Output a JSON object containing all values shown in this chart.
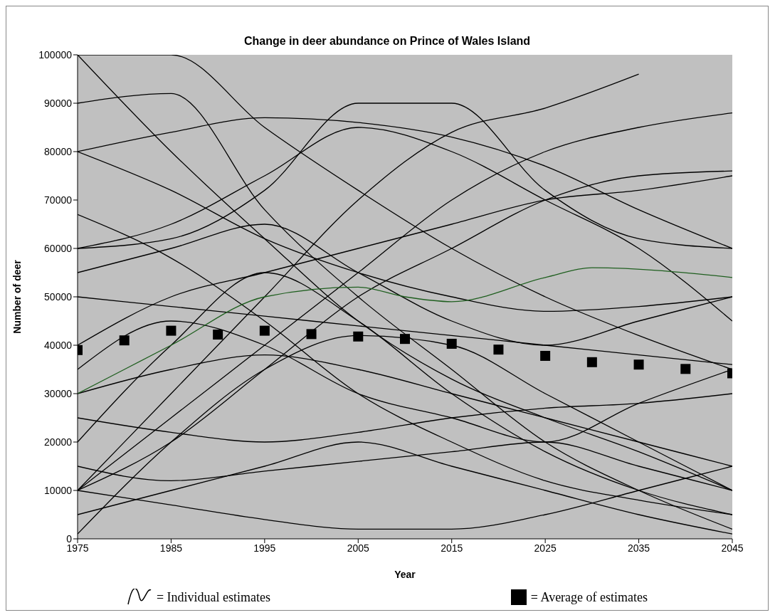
{
  "chart_data": {
    "type": "line",
    "title": "Change in deer abundance on Prince of Wales Island",
    "xlabel": "Year",
    "ylabel": "Number of deer",
    "x": [
      1975,
      1985,
      1995,
      2005,
      2015,
      2025,
      2035,
      2045
    ],
    "xlim": [
      1975,
      2045
    ],
    "xticks": [
      1975,
      1985,
      1995,
      2005,
      2015,
      2025,
      2035,
      2045
    ],
    "ylim": [
      0,
      100000
    ],
    "yticks": [
      0,
      10000,
      20000,
      30000,
      40000,
      50000,
      60000,
      70000,
      80000,
      90000,
      100000
    ],
    "grid": false,
    "legend": "bottom",
    "marker": "none",
    "line_style": "solid",
    "series": [
      {
        "name": "= Individual estimates",
        "color": "#000000",
        "values": [
          100000,
          100000,
          85000,
          72000,
          60000,
          50000,
          42000,
          35000
        ]
      },
      {
        "color": "#000000",
        "values": [
          100000,
          80000,
          62000,
          45000,
          33000,
          25000,
          18000,
          10000
        ]
      },
      {
        "color": "#000000",
        "values": [
          80000,
          84000,
          87000,
          86000,
          83000,
          77000,
          68000,
          60000
        ]
      },
      {
        "color": "#000000",
        "values": [
          80000,
          72000,
          62000,
          55000,
          50000,
          47000,
          48000,
          50000
        ]
      },
      {
        "color": "#000000",
        "values": [
          60000,
          62000,
          72000,
          90000,
          90000,
          72000,
          62000,
          60000
        ]
      },
      {
        "color": "#000000",
        "values": [
          10000,
          30000,
          50000,
          70000,
          84000,
          89000,
          96000,
          null
        ]
      },
      {
        "color": "#000000",
        "values": [
          10000,
          25000,
          40000,
          55000,
          70000,
          80000,
          85000,
          88000
        ]
      },
      {
        "color": "#000000",
        "values": [
          50000,
          48000,
          46000,
          44000,
          42000,
          40000,
          38000,
          36000
        ]
      },
      {
        "color": "#000000",
        "values": [
          30000,
          35000,
          38000,
          35000,
          30000,
          25000,
          20000,
          15000
        ]
      },
      {
        "color": "#000000",
        "values": [
          20000,
          40000,
          55000,
          45000,
          30000,
          18000,
          10000,
          5000
        ]
      },
      {
        "color": "#000000",
        "values": [
          10000,
          20000,
          35000,
          50000,
          60000,
          70000,
          75000,
          76000
        ]
      },
      {
        "color": "#000000",
        "values": [
          1000,
          20000,
          35000,
          42000,
          40000,
          30000,
          20000,
          10000
        ]
      },
      {
        "color": "#000000",
        "values": [
          90000,
          92000,
          68000,
          50000,
          35000,
          20000,
          10000,
          2000
        ]
      },
      {
        "color": "#000000",
        "values": [
          67000,
          58000,
          45000,
          30000,
          20000,
          12000,
          8000,
          5000
        ]
      },
      {
        "color": "#000000",
        "values": [
          10000,
          7000,
          4000,
          2000,
          2000,
          5000,
          10000,
          15000
        ]
      },
      {
        "color": "#000000",
        "values": [
          25000,
          22000,
          20000,
          22000,
          25000,
          27000,
          28000,
          30000
        ]
      },
      {
        "color": "#000000",
        "values": [
          40000,
          50000,
          55000,
          60000,
          65000,
          70000,
          72000,
          75000
        ]
      },
      {
        "color": "#000000",
        "values": [
          5000,
          10000,
          15000,
          20000,
          15000,
          10000,
          5000,
          1000
        ]
      },
      {
        "color": "#000000",
        "values": [
          60000,
          65000,
          75000,
          85000,
          80000,
          70000,
          60000,
          45000
        ]
      },
      {
        "color": "#000000",
        "values": [
          35000,
          45000,
          40000,
          30000,
          25000,
          20000,
          28000,
          35000
        ]
      },
      {
        "color": "#000000",
        "values": [
          15000,
          12000,
          14000,
          16000,
          18000,
          20000,
          15000,
          10000
        ]
      },
      {
        "color": "#000000",
        "values": [
          55000,
          60000,
          65000,
          55000,
          45000,
          40000,
          45000,
          50000
        ]
      },
      {
        "color": "#1f5f1f",
        "x": [
          1975,
          1985,
          1995,
          2005,
          2010,
          2015,
          2025,
          2030,
          2045
        ],
        "values": [
          30000,
          40000,
          50000,
          52000,
          50000,
          49000,
          54000,
          56000,
          54000
        ]
      },
      {
        "name": "= Average of estimates",
        "type": "scatter",
        "marker": "square",
        "color": "#000000",
        "x": [
          1975,
          1980,
          1985,
          1990,
          1995,
          2000,
          2005,
          2010,
          2015,
          2020,
          2025,
          2030,
          2035,
          2040,
          2045
        ],
        "values": [
          39000,
          41000,
          43000,
          42200,
          43000,
          42300,
          41800,
          41300,
          40300,
          39100,
          37800,
          36500,
          36000,
          35100,
          34200
        ]
      }
    ]
  }
}
